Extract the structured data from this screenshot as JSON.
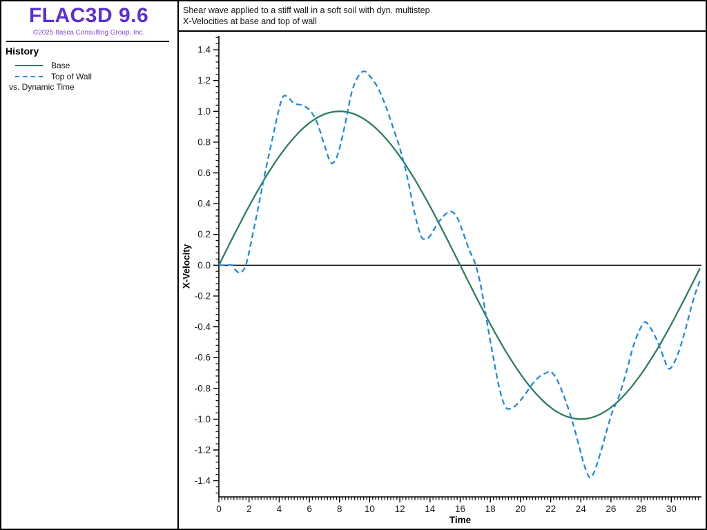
{
  "app": {
    "logo_title": "FLAC3D 9.6",
    "logo_copyright": "©2025 Itasca Consulting Group, Inc.",
    "logo_color": "#5b2ed6",
    "logo_copyright_color": "#7b49d9",
    "panel": {
      "history_title": "History",
      "legend": [
        {
          "label": "Base",
          "line": "solid",
          "color": "#2e7d57"
        },
        {
          "label": "Top of Wall",
          "line": "dashed",
          "color": "#1e88e5"
        }
      ],
      "x_axis_note": "vs. Dynamic Time"
    }
  },
  "chart_data": {
    "type": "line",
    "title_line1": "Shear wave applied to a stiff wall in a soft soil with dyn. multistep",
    "title_line2": "X-Velocities at base and top of wall",
    "xlabel": "Time",
    "ylabel": "X-Velocity",
    "xlim": [
      0,
      32
    ],
    "ylim": [
      -1.505,
      1.49
    ],
    "grid": false,
    "zero_line": true,
    "legend_position": "left-panel",
    "x_ticks": {
      "values": [
        0,
        2,
        4,
        6,
        8,
        10,
        12,
        14,
        16,
        18,
        20,
        22,
        24,
        26,
        28,
        30
      ],
      "labels": [
        "0",
        "2",
        "4",
        "6",
        "8",
        "10",
        "12",
        "14",
        "16",
        "18",
        "20",
        "22",
        "24",
        "26",
        "28",
        "30"
      ]
    },
    "x_minor_step": 0.2,
    "y_ticks": {
      "values": [
        -1.4,
        -1.2,
        -1.0,
        -0.8,
        -0.6,
        -0.4,
        -0.2,
        0.0,
        0.2,
        0.4,
        0.6,
        0.8,
        1.0,
        1.2,
        1.4
      ],
      "labels": [
        "-1.4",
        "-1.2",
        "-1.0",
        "-0.8",
        "-0.6",
        "-0.4",
        "-0.2",
        "0.0",
        "0.2",
        "0.4",
        "0.6",
        "0.8",
        "1.0",
        "1.2",
        "1.4"
      ]
    },
    "y_minor_step": 0.04,
    "series": [
      {
        "name": "Base",
        "style": "solid",
        "color": "#2e7d57",
        "points": [
          [
            0,
            0
          ],
          [
            0.5,
            0.098
          ],
          [
            1,
            0.195
          ],
          [
            1.5,
            0.29
          ],
          [
            2,
            0.383
          ],
          [
            2.5,
            0.471
          ],
          [
            3,
            0.556
          ],
          [
            3.5,
            0.634
          ],
          [
            4,
            0.707
          ],
          [
            4.5,
            0.773
          ],
          [
            5,
            0.831
          ],
          [
            5.5,
            0.882
          ],
          [
            6,
            0.924
          ],
          [
            6.5,
            0.957
          ],
          [
            7,
            0.981
          ],
          [
            7.5,
            0.995
          ],
          [
            8,
            1
          ],
          [
            8.5,
            0.995
          ],
          [
            9,
            0.981
          ],
          [
            9.5,
            0.957
          ],
          [
            10,
            0.924
          ],
          [
            10.5,
            0.882
          ],
          [
            11,
            0.831
          ],
          [
            11.5,
            0.773
          ],
          [
            12,
            0.707
          ],
          [
            12.5,
            0.634
          ],
          [
            13,
            0.556
          ],
          [
            13.5,
            0.471
          ],
          [
            14,
            0.383
          ],
          [
            14.5,
            0.29
          ],
          [
            15,
            0.195
          ],
          [
            15.5,
            0.098
          ],
          [
            16,
            0
          ],
          [
            16.5,
            -0.098
          ],
          [
            17,
            -0.195
          ],
          [
            17.5,
            -0.29
          ],
          [
            18,
            -0.383
          ],
          [
            18.5,
            -0.471
          ],
          [
            19,
            -0.556
          ],
          [
            19.5,
            -0.634
          ],
          [
            20,
            -0.707
          ],
          [
            20.5,
            -0.773
          ],
          [
            21,
            -0.831
          ],
          [
            21.5,
            -0.882
          ],
          [
            22,
            -0.924
          ],
          [
            22.5,
            -0.957
          ],
          [
            23,
            -0.981
          ],
          [
            23.5,
            -0.995
          ],
          [
            24,
            -1
          ],
          [
            24.5,
            -0.995
          ],
          [
            25,
            -0.981
          ],
          [
            25.5,
            -0.957
          ],
          [
            26,
            -0.924
          ],
          [
            26.5,
            -0.882
          ],
          [
            27,
            -0.831
          ],
          [
            27.5,
            -0.773
          ],
          [
            28,
            -0.707
          ],
          [
            28.5,
            -0.634
          ],
          [
            29,
            -0.556
          ],
          [
            29.5,
            -0.471
          ],
          [
            30,
            -0.383
          ],
          [
            30.5,
            -0.29
          ],
          [
            31,
            -0.195
          ],
          [
            31.5,
            -0.098
          ],
          [
            31.9,
            -0.02
          ]
        ]
      },
      {
        "name": "Top of Wall",
        "style": "dashed",
        "color": "#1e88e5",
        "points": [
          [
            0,
            0
          ],
          [
            0.5,
            0
          ],
          [
            0.9,
            0
          ],
          [
            1.1,
            -0.03
          ],
          [
            1.4,
            -0.05
          ],
          [
            1.7,
            -0.02
          ],
          [
            1.9,
            0.04
          ],
          [
            2.2,
            0.18
          ],
          [
            2.6,
            0.37
          ],
          [
            3,
            0.57
          ],
          [
            3.5,
            0.8
          ],
          [
            4,
            1.02
          ],
          [
            4.3,
            1.1
          ],
          [
            4.7,
            1.08
          ],
          [
            5,
            1.05
          ],
          [
            5.5,
            1.04
          ],
          [
            6,
            1.01
          ],
          [
            6.5,
            0.93
          ],
          [
            7,
            0.78
          ],
          [
            7.4,
            0.67
          ],
          [
            7.7,
            0.68
          ],
          [
            8,
            0.76
          ],
          [
            8.4,
            0.93
          ],
          [
            8.8,
            1.12
          ],
          [
            9.2,
            1.22
          ],
          [
            9.6,
            1.26
          ],
          [
            10,
            1.23
          ],
          [
            10.5,
            1.16
          ],
          [
            11,
            1.05
          ],
          [
            11.5,
            0.91
          ],
          [
            12,
            0.76
          ],
          [
            12.5,
            0.57
          ],
          [
            13,
            0.33
          ],
          [
            13.4,
            0.19
          ],
          [
            13.7,
            0.17
          ],
          [
            14,
            0.19
          ],
          [
            14.5,
            0.27
          ],
          [
            15,
            0.33
          ],
          [
            15.4,
            0.35
          ],
          [
            15.8,
            0.31
          ],
          [
            16.2,
            0.21
          ],
          [
            16.6,
            0.1
          ],
          [
            17,
            0.01
          ],
          [
            17.4,
            -0.15
          ],
          [
            17.8,
            -0.38
          ],
          [
            18.2,
            -0.6
          ],
          [
            18.6,
            -0.8
          ],
          [
            19,
            -0.92
          ],
          [
            19.4,
            -0.93
          ],
          [
            19.8,
            -0.9
          ],
          [
            20.3,
            -0.84
          ],
          [
            20.8,
            -0.77
          ],
          [
            21.3,
            -0.72
          ],
          [
            21.7,
            -0.7
          ],
          [
            22,
            -0.69
          ],
          [
            22.4,
            -0.74
          ],
          [
            22.8,
            -0.83
          ],
          [
            23.2,
            -0.94
          ],
          [
            23.6,
            -1.07
          ],
          [
            24,
            -1.22
          ],
          [
            24.3,
            -1.32
          ],
          [
            24.6,
            -1.38
          ],
          [
            24.9,
            -1.34
          ],
          [
            25.3,
            -1.22
          ],
          [
            25.7,
            -1.08
          ],
          [
            26.1,
            -0.95
          ],
          [
            26.5,
            -0.86
          ],
          [
            27,
            -0.7
          ],
          [
            27.5,
            -0.52
          ],
          [
            28,
            -0.4
          ],
          [
            28.3,
            -0.37
          ],
          [
            28.7,
            -0.42
          ],
          [
            29.1,
            -0.5
          ],
          [
            29.5,
            -0.6
          ],
          [
            29.8,
            -0.67
          ],
          [
            30.1,
            -0.65
          ],
          [
            30.5,
            -0.56
          ],
          [
            30.9,
            -0.43
          ],
          [
            31.3,
            -0.28
          ],
          [
            31.6,
            -0.18
          ],
          [
            31.9,
            -0.1
          ]
        ]
      }
    ]
  }
}
